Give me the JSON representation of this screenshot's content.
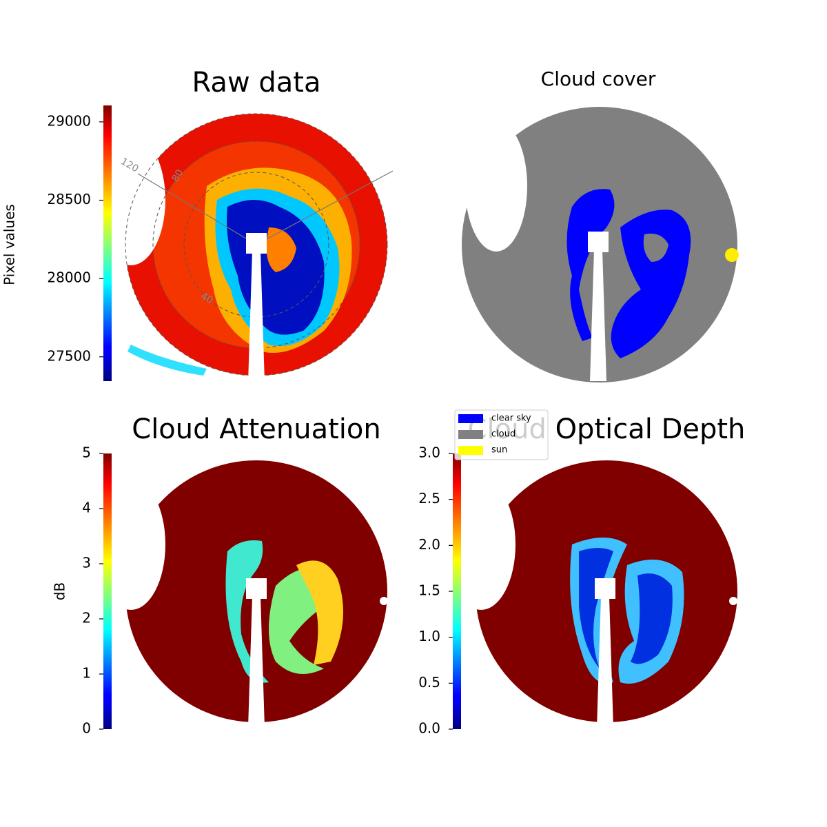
{
  "chart_data": [
    {
      "type": "image",
      "title": "Raw data",
      "colorbar": {
        "label": "Pixel values",
        "colormap": "jet",
        "lim": [
          27345,
          29105
        ],
        "ticks": [
          27500,
          28000,
          28500,
          29000
        ]
      },
      "polar_labels": [
        "120",
        "80",
        "40"
      ]
    },
    {
      "type": "image",
      "title": "Cloud cover",
      "legend": {
        "items": [
          {
            "name": "clear sky",
            "color": "#0000ff"
          },
          {
            "name": "cloud",
            "color": "#808080"
          },
          {
            "name": "sun",
            "color": "#ffff00"
          }
        ]
      }
    },
    {
      "type": "image",
      "title": "Cloud Attenuation",
      "colorbar": {
        "label": "dB",
        "colormap": "jet",
        "lim": [
          0,
          5
        ],
        "ticks": [
          0,
          1,
          2,
          3,
          4,
          5
        ]
      }
    },
    {
      "type": "image",
      "title": "Cloud Optical Depth",
      "colorbar": {
        "colormap": "jet",
        "lim": [
          0,
          3
        ],
        "ticks": [
          {
            "value": 0,
            "label": "0.0"
          },
          0.5,
          {
            "value": 1,
            "label": "1.0"
          },
          1.5,
          {
            "value": 2,
            "label": "2.0"
          },
          2.5,
          {
            "value": 3,
            "label": "3.0"
          }
        ]
      }
    }
  ]
}
